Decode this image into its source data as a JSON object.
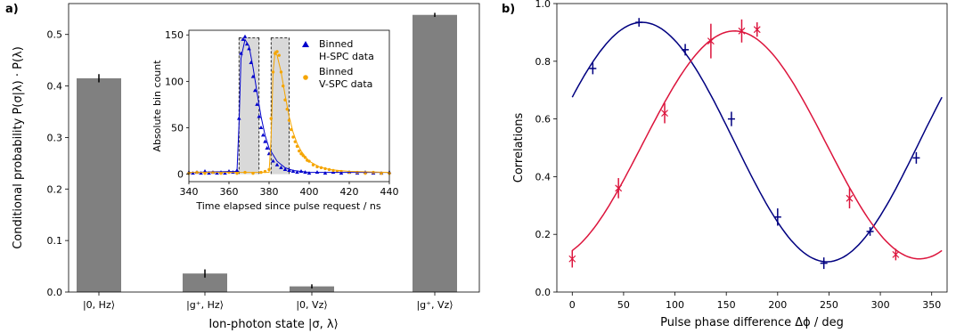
{
  "chart_data": [
    {
      "type": "bar",
      "panel_label": "a)",
      "xlabel": "Ion-photon state |σ, λ⟩",
      "ylabel": "Conditional probability P(σ|λ) · P(λ)",
      "ylim": [
        0,
        0.56
      ],
      "yticks": [
        0.0,
        0.1,
        0.2,
        0.3,
        0.4,
        0.5
      ],
      "ytick_labels": [
        "0.0",
        "0.1",
        "0.2",
        "0.3",
        "0.4",
        "0.5"
      ],
      "categories": [
        "|0, Hz⟩",
        "|g⁺, Hz⟩",
        "|0, Vz⟩",
        "|g⁺, Vz⟩"
      ],
      "values": [
        0.415,
        0.036,
        0.011,
        0.538
      ],
      "errors": [
        0.008,
        0.008,
        0.004,
        0.004
      ],
      "colors": {
        "bar": "#808080",
        "error": "#000000"
      },
      "inset": {
        "type": "scatter",
        "xlabel": "Time elapsed since pulse request / ns",
        "ylabel": "Absolute bin count",
        "xlim": [
          340,
          440
        ],
        "ylim": [
          -8,
          155
        ],
        "xticks": [
          340,
          360,
          380,
          400,
          420,
          440
        ],
        "yticks": [
          0,
          50,
          100,
          150
        ],
        "legend": [
          "Binned\nH-SPC data",
          "Binned\nV-SPC data"
        ],
        "shaded_windows": [
          [
            365,
            375
          ],
          [
            381,
            390
          ]
        ],
        "series": [
          {
            "name": "Binned H-SPC data",
            "marker": "triangle",
            "color": "#0000cc",
            "x": [
              340,
              342,
              344,
              346,
              348,
              350,
              352,
              354,
              356,
              358,
              360,
              362,
              364,
              365,
              366,
              367,
              368,
              369,
              370,
              371,
              372,
              373,
              374,
              375,
              376,
              377,
              378,
              379,
              380,
              382,
              384,
              386,
              388,
              390,
              392,
              394,
              396,
              398,
              400,
              404,
              408,
              412,
              416,
              420,
              424,
              428,
              432,
              436,
              440
            ],
            "y": [
              2,
              1,
              2,
              1,
              3,
              1,
              2,
              1,
              2,
              1,
              3,
              2,
              4,
              60,
              130,
              145,
              148,
              140,
              135,
              120,
              105,
              90,
              75,
              62,
              50,
              42,
              35,
              28,
              22,
              14,
              10,
              7,
              5,
              4,
              3,
              2,
              3,
              2,
              1,
              2,
              1,
              2,
              1,
              2,
              1,
              2,
              1,
              1,
              2
            ]
          },
          {
            "name": "Binned V-SPC data",
            "marker": "circle",
            "color": "#f5a500",
            "x": [
              340,
              344,
              348,
              352,
              356,
              360,
              364,
              368,
              372,
              376,
              378,
              380,
              381,
              382,
              383,
              384,
              385,
              386,
              387,
              388,
              389,
              390,
              391,
              392,
              393,
              394,
              395,
              396,
              397,
              398,
              399,
              400,
              402,
              404,
              406,
              408,
              410,
              412,
              414,
              416,
              420,
              424,
              428,
              432,
              436,
              440
            ],
            "y": [
              1,
              2,
              1,
              2,
              1,
              2,
              1,
              2,
              1,
              2,
              3,
              5,
              60,
              110,
              130,
              132,
              128,
              110,
              95,
              80,
              70,
              58,
              48,
              40,
              35,
              30,
              25,
              22,
              20,
              18,
              15,
              14,
              10,
              8,
              7,
              6,
              5,
              4,
              3,
              3,
              2,
              2,
              1,
              2,
              1,
              1
            ]
          },
          {
            "name": "fit-h",
            "line": true,
            "color": "#0000cc",
            "x": [
              340,
              364,
              365,
              366,
              368,
              370,
              372,
              374,
              376,
              378,
              380,
              384,
              388,
              392,
              396,
              400,
              410,
              420,
              440
            ],
            "y": [
              2,
              3,
              55,
              125,
              145,
              138,
              115,
              88,
              62,
              42,
              28,
              14,
              7,
              4,
              3,
              2,
              2,
              2,
              2
            ]
          },
          {
            "name": "fit-v",
            "line": true,
            "color": "#f5a500",
            "x": [
              340,
              380,
              381,
              382,
              383,
              384,
              386,
              388,
              390,
              392,
              394,
              396,
              398,
              400,
              405,
              410,
              420,
              440
            ],
            "y": [
              2,
              2,
              40,
              110,
              132,
              128,
              110,
              85,
              62,
              45,
              33,
              25,
              19,
              14,
              8,
              5,
              3,
              2
            ]
          }
        ]
      }
    },
    {
      "type": "scatter",
      "panel_label": "b)",
      "xlabel": "Pulse phase difference Δϕ / deg",
      "ylabel": "Correlations",
      "xlim": [
        -15,
        365
      ],
      "ylim": [
        0.0,
        1.0
      ],
      "xticks": [
        0,
        50,
        100,
        150,
        200,
        250,
        300,
        350
      ],
      "yticks": [
        0.0,
        0.2,
        0.4,
        0.6,
        0.8,
        1.0
      ],
      "ytick_labels": [
        "0.0",
        "0.2",
        "0.4",
        "0.6",
        "0.8",
        "1.0"
      ],
      "series": [
        {
          "name": "blue-data",
          "color": "#000080",
          "marker": "plus",
          "x": [
            20,
            65,
            110,
            155,
            200,
            245,
            290,
            335
          ],
          "y": [
            0.775,
            0.935,
            0.84,
            0.6,
            0.26,
            0.1,
            0.21,
            0.465
          ],
          "yerr": [
            0.02,
            0.015,
            0.02,
            0.025,
            0.03,
            0.02,
            0.015,
            0.02
          ]
        },
        {
          "name": "red-data",
          "color": "#dc143c",
          "marker": "x",
          "x": [
            0,
            45,
            90,
            135,
            165,
            180,
            270,
            315
          ],
          "y": [
            0.115,
            0.36,
            0.62,
            0.87,
            0.905,
            0.91,
            0.325,
            0.13
          ],
          "yerr": [
            0.03,
            0.035,
            0.035,
            0.06,
            0.04,
            0.025,
            0.035,
            0.02
          ]
        },
        {
          "name": "blue-fit",
          "color": "#000080",
          "line": true,
          "fit": {
            "offset": 0.52,
            "amplitude": 0.415,
            "phase_deg": 68
          }
        },
        {
          "name": "red-fit",
          "color": "#dc143c",
          "line": true,
          "fit": {
            "offset": 0.51,
            "amplitude": 0.395,
            "phase_deg": 158
          }
        }
      ]
    }
  ]
}
